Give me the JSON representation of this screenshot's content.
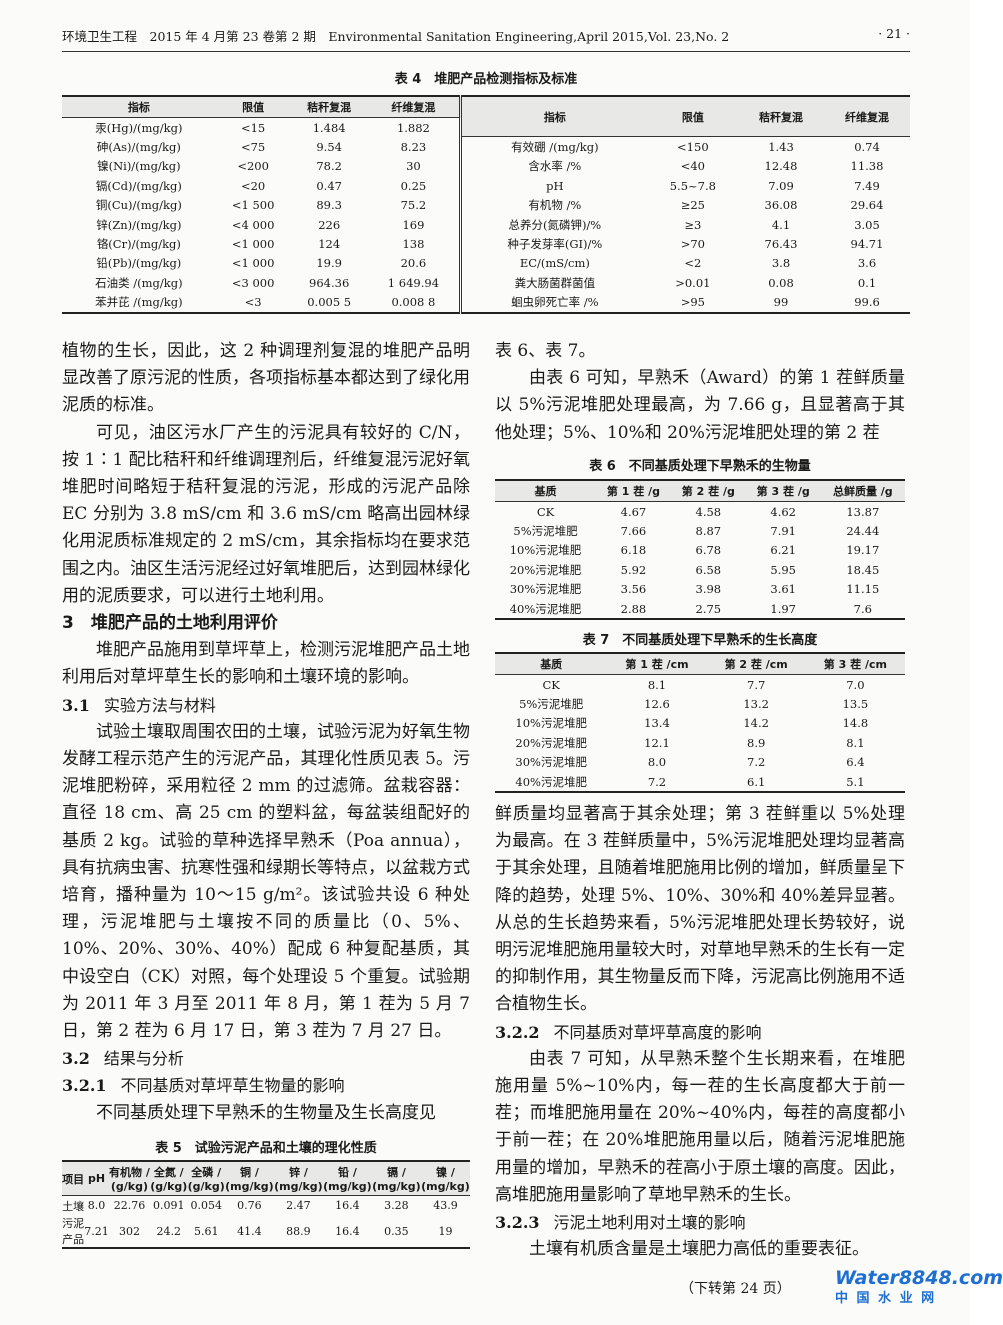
{
  "header": {
    "left": "环境卫生工程　2015 年 4 月第 23 卷第 2 期　Environmental Sanitation Engineering,April 2015,Vol. 23,No. 2",
    "page": "· 21 ·"
  },
  "table4": {
    "title": "表 4　堆肥产品检测指标及标准",
    "headers": [
      "指标",
      "限值",
      "秸秆复混",
      "纤维复混"
    ],
    "left": [
      [
        "汞(Hg)/(mg/kg)",
        "<15",
        "1.484",
        "1.882"
      ],
      [
        "砷(As)/(mg/kg)",
        "<75",
        "9.54",
        "8.23"
      ],
      [
        "镍(Ni)/(mg/kg)",
        "<200",
        "78.2",
        "30"
      ],
      [
        "镉(Cd)/(mg/kg)",
        "<20",
        "0.47",
        "0.25"
      ],
      [
        "铜(Cu)/(mg/kg)",
        "<1 500",
        "89.3",
        "75.2"
      ],
      [
        "锌(Zn)/(mg/kg)",
        "<4 000",
        "226",
        "169"
      ],
      [
        "铬(Cr)/(mg/kg)",
        "<1 000",
        "124",
        "138"
      ],
      [
        "铅(Pb)/(mg/kg)",
        "<1 000",
        "19.9",
        "20.6"
      ],
      [
        "石油类 /(mg/kg)",
        "<3 000",
        "964.36",
        "1 649.94"
      ],
      [
        "苯并芘 /(mg/kg)",
        "<3",
        "0.005 5",
        "0.008 8"
      ]
    ],
    "right": [
      [
        "有效硼 /(mg/kg)",
        "<150",
        "1.43",
        "0.74"
      ],
      [
        "含水率 /%",
        "<40",
        "12.48",
        "11.38"
      ],
      [
        "pH",
        "5.5~7.8",
        "7.09",
        "7.49"
      ],
      [
        "有机物 /%",
        "≥25",
        "36.08",
        "29.64"
      ],
      [
        "总养分(氮磷钾)/%",
        "≥3",
        "4.1",
        "3.05"
      ],
      [
        "种子发芽率(GI)/%",
        ">70",
        "76.43",
        "94.71"
      ],
      [
        "EC/(mS/cm)",
        "<2",
        "3.8",
        "3.6"
      ],
      [
        "粪大肠菌群菌值",
        ">0.01",
        "0.08",
        "0.1"
      ],
      [
        "蛔虫卵死亡率 /%",
        ">95",
        "99",
        "99.6"
      ]
    ]
  },
  "left_col": {
    "p1": "植物的生长，因此，这 2 种调理剂复混的堆肥产品明显改善了原污泥的性质，各项指标基本都达到了绿化用泥质的标准。",
    "p2": "可见，油区污水厂产生的污泥具有较好的 C/N，按 1∶1 配比秸秆和纤维调理剂后，纤维复混污泥好氧堆肥时间略短于秸秆复混的污泥，形成的污泥产品除 EC 分别为 3.8 mS/cm 和 3.6 mS/cm 略高出园林绿化用泥质标准规定的 2 mS/cm，其余指标均在要求范围之内。油区生活污泥经过好氧堆肥后，达到园林绿化用的泥质要求，可以进行土地利用。",
    "h3": "3　堆肥产品的土地利用评价",
    "p3": "堆肥产品施用到草坪草上，检测污泥堆肥产品土地利用后对草坪草生长的影响和土壤环境的影响。",
    "h31_num": "3.1",
    "h31": "实验方法与材料",
    "p4": "试验土壤取周围农田的土壤，试验污泥为好氧生物发酵工程示范产生的污泥产品，其理化性质见表 5。污泥堆肥粉碎，采用粒径 2 mm 的过滤筛。盆栽容器：直径 18 cm、高 25 cm 的塑料盆，每盆装组配好的基质 2 kg。试验的草种选择早熟禾（Poa annua），具有抗病虫害、抗寒性强和绿期长等特点，以盆栽方式培育，播种量为 10～15 g/m²。该试验共设 6 种处理，污泥堆肥与土壤按不同的质量比（0、5%、10%、20%、30%、40%）配成 6 种复配基质，其中设空白（CK）对照，每个处理设 5 个重复。试验期为 2011 年 3 月至 2011 年 8 月，第 1 茬为 5 月 7 日，第 2 茬为 6 月 17 日，第 3 茬为 7 月 27 日。",
    "h32_num": "3.2",
    "h32": "结果与分析",
    "h321_num": "3.2.1",
    "h321": "不同基质对草坪草生物量的影响",
    "p5": "不同基质处理下早熟禾的生物量及生长高度见"
  },
  "table5": {
    "title": "表 5　试验污泥产品和土壤的理化性质",
    "headers": [
      "项目",
      "pH",
      "有机物 /\n(g/kg)",
      "全氮 /\n(g/kg)",
      "全磷 /\n(g/kg)",
      "铜 /\n(mg/kg)",
      "锌 /\n(mg/kg)",
      "铅 /\n(mg/kg)",
      "镉 /\n(mg/kg)",
      "镍 /\n(mg/kg)"
    ],
    "rows": [
      [
        "土壤",
        "8.0",
        "22.76",
        "0.091",
        "0.054",
        "0.76",
        "2.47",
        "16.4",
        "3.28",
        "43.9"
      ],
      [
        "污泥\n产品",
        "7.21",
        "302",
        "24.2",
        "5.61",
        "41.4",
        "88.9",
        "16.4",
        "0.35",
        "19"
      ]
    ]
  },
  "right_col": {
    "p1": "表 6、表 7。",
    "p2": "由表 6 可知，早熟禾（Award）的第 1 茬鲜质量以 5%污泥堆肥处理最高，为 7.66 g，且显著高于其他处理；5%、10%和 20%污泥堆肥处理的第 2 茬",
    "p3": "鲜质量均显著高于其余处理；第 3 茬鲜重以 5%处理为最高。在 3 茬鲜质量中，5%污泥堆肥处理均显著高于其余处理，且随着堆肥施用比例的增加，鲜质量呈下降的趋势，处理 5%、10%、30%和 40%差异显著。从总的生长趋势来看，5%污泥堆肥处理长势较好，说明污泥堆肥施用量较大时，对草地早熟禾的生长有一定的抑制作用，其生物量反而下降，污泥高比例施用不适合植物生长。",
    "h322_num": "3.2.2",
    "h322": "不同基质对草坪草高度的影响",
    "p4": "由表 7 可知，从早熟禾整个生长期来看，在堆肥施用量 5%~10%内，每一茬的生长高度都大于前一茬；而堆肥施用量在 20%~40%内，每茬的高度都小于前一茬；在 20%堆肥施用量以后，随着污泥堆肥施用量的增加，早熟禾的茬高小于原土壤的高度。因此，高堆肥施用量影响了草地早熟禾的生长。",
    "h323_num": "3.2.3",
    "h323": "污泥土地利用对土壤的影响",
    "p5": "土壤有机质含量是土壤肥力高低的重要表征。"
  },
  "table6": {
    "title": "表 6　不同基质处理下早熟禾的生物量",
    "headers": [
      "基质",
      "第 1 茬 /g",
      "第 2 茬 /g",
      "第 3 茬 /g",
      "总鲜质量 /g"
    ],
    "rows": [
      [
        "CK",
        "4.67",
        "4.58",
        "4.62",
        "13.87"
      ],
      [
        "5%污泥堆肥",
        "7.66",
        "8.87",
        "7.91",
        "24.44"
      ],
      [
        "10%污泥堆肥",
        "6.18",
        "6.78",
        "6.21",
        "19.17"
      ],
      [
        "20%污泥堆肥",
        "5.92",
        "6.58",
        "5.95",
        "18.45"
      ],
      [
        "30%污泥堆肥",
        "3.56",
        "3.98",
        "3.61",
        "11.15"
      ],
      [
        "40%污泥堆肥",
        "2.88",
        "2.75",
        "1.97",
        "7.6"
      ]
    ]
  },
  "table7": {
    "title": "表 7　不同基质处理下早熟禾的生长高度",
    "headers": [
      "基质",
      "第 1 茬 /cm",
      "第 2 茬 /cm",
      "第 3 茬 /cm"
    ],
    "rows": [
      [
        "CK",
        "8.1",
        "7.7",
        "7.0"
      ],
      [
        "5%污泥堆肥",
        "12.6",
        "13.2",
        "13.5"
      ],
      [
        "10%污泥堆肥",
        "13.4",
        "14.2",
        "14.8"
      ],
      [
        "20%污泥堆肥",
        "12.1",
        "8.9",
        "8.1"
      ],
      [
        "30%污泥堆肥",
        "8.0",
        "7.2",
        "6.4"
      ],
      [
        "40%污泥堆肥",
        "7.2",
        "6.1",
        "5.1"
      ]
    ]
  },
  "footer": {
    "continued": "（下转第 24 页）",
    "logo_text": "Water8848.com",
    "logo_sub": "中 国 水 业 网"
  },
  "colors": {
    "logo_blue": "#1e6fd0",
    "logo_red": "#e2261c",
    "logo_green": "#7cb82f"
  }
}
